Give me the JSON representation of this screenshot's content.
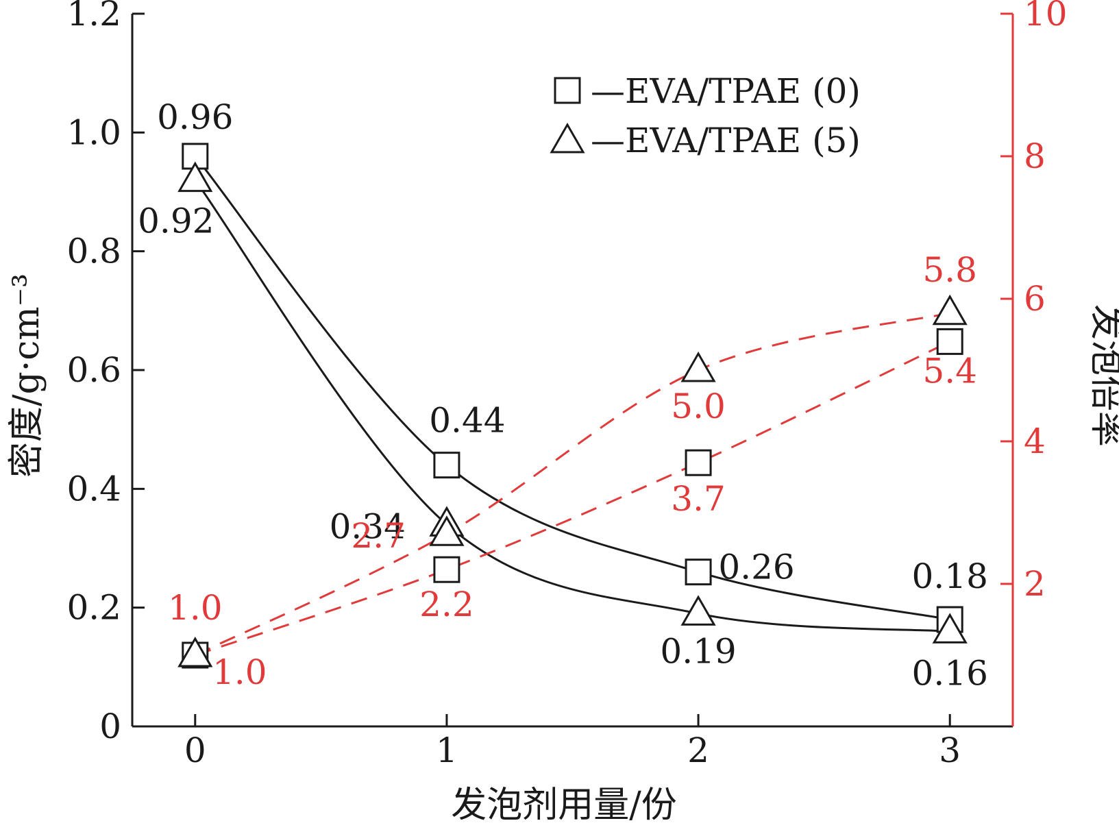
{
  "chart_data": {
    "type": "line",
    "x": [
      0,
      1,
      2,
      3
    ],
    "xlabel": "发泡剂用量/份",
    "ylabel_left": "密度/g·cm⁻³",
    "ylabel_right": "发泡倍率",
    "xlim": [
      -0.25,
      3.25
    ],
    "ylim_left": [
      0,
      1.2
    ],
    "ylim_right": [
      0,
      10
    ],
    "xticks": [
      "0",
      "1",
      "2",
      "3"
    ],
    "yticks_left": [
      "0",
      "0.2",
      "0.4",
      "0.6",
      "0.8",
      "1.0",
      "1.2"
    ],
    "yticks_right": [
      "2",
      "4",
      "6",
      "8",
      "10"
    ],
    "legend_position": "top-right",
    "colors": {
      "density": "#1a1a1a",
      "expansion": "#e03a3a"
    },
    "density_series": [
      {
        "name": "EVA/TPAE (0)",
        "marker": "square",
        "values": [
          0.96,
          0.44,
          0.26,
          0.18
        ],
        "labels": [
          "0.96",
          "0.44",
          "0.26",
          "0.18"
        ]
      },
      {
        "name": "EVA/TPAE (5)",
        "marker": "triangle",
        "values": [
          0.92,
          0.34,
          0.19,
          0.16
        ],
        "labels": [
          "0.92",
          "0.34",
          "0.19",
          "0.16"
        ]
      }
    ],
    "expansion_series": [
      {
        "marker": "square",
        "values": [
          1.0,
          2.2,
          3.7,
          5.4
        ],
        "labels": [
          "1.0",
          "2.2",
          "3.7",
          "5.4"
        ]
      },
      {
        "marker": "triangle",
        "values": [
          1.0,
          2.7,
          5.0,
          5.8
        ],
        "labels": [
          "1.0",
          "2.7",
          "5.0",
          "5.8"
        ]
      }
    ]
  }
}
